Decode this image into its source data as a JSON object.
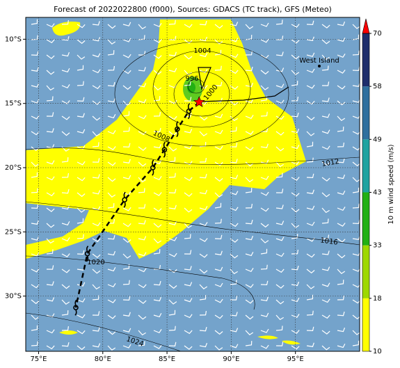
{
  "header": {
    "title": "Forecast of 2022022800 (f000), Sources: GDACS (TC track), GFS (Meteo)"
  },
  "map": {
    "lon_range": [
      74,
      100
    ],
    "lat_range": [
      -34.3,
      -8.3
    ],
    "lon_ticks": [
      {
        "value": 75,
        "label": "75°E"
      },
      {
        "value": 80,
        "label": "80°E"
      },
      {
        "value": 85,
        "label": "85°E"
      },
      {
        "value": 90,
        "label": "90°E"
      },
      {
        "value": 95,
        "label": "95°E"
      }
    ],
    "lat_ticks": [
      {
        "value": -10,
        "label": "10°S"
      },
      {
        "value": -15,
        "label": "15°S"
      },
      {
        "value": -20,
        "label": "20°S"
      },
      {
        "value": -25,
        "label": "25°S"
      },
      {
        "value": -30,
        "label": "30°S"
      }
    ]
  },
  "isobar_labels": [
    "1004",
    "996",
    "1000",
    "1008",
    "1012",
    "1016",
    "1020",
    "1024"
  ],
  "place_label": "West Island",
  "track": {
    "lon": [
      87.5,
      86.7,
      85.8,
      84.8,
      83.9,
      81.7,
      78.8,
      77.9
    ],
    "lat": [
      -14.9,
      -15.6,
      -17.0,
      -18.6,
      -20.0,
      -22.5,
      -26.7,
      -30.9
    ]
  },
  "colorbar": {
    "label": "10 m wind speed (m/s)",
    "levels": [
      10,
      18,
      33,
      43,
      49,
      58,
      70
    ],
    "colors": [
      "#ffff00",
      "#9ed800",
      "#22b014",
      "#1fa3a0",
      "#2f6f9e",
      "#1e2d6b",
      "#ff0000"
    ]
  }
}
